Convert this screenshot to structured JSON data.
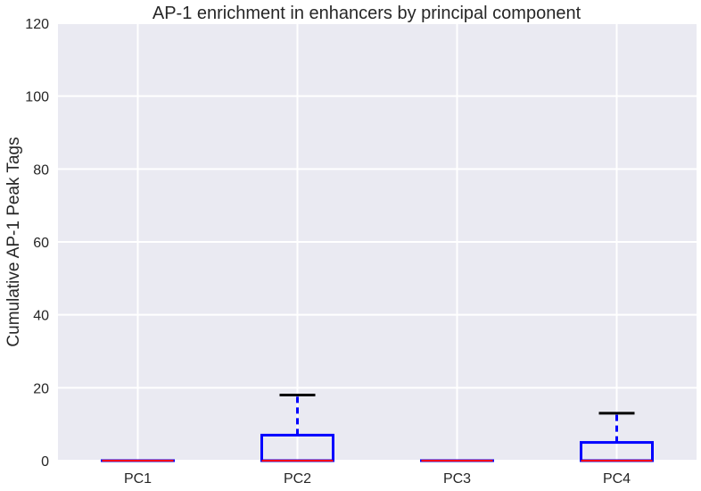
{
  "chart_data": {
    "type": "box",
    "title": "AP-1 enrichment in enhancers by principal component",
    "xlabel": "",
    "ylabel": "Cumulative AP-1 Peak Tags",
    "ylim": [
      0,
      120
    ],
    "yticks": [
      0,
      20,
      40,
      60,
      80,
      100,
      120
    ],
    "categories": [
      "PC1",
      "PC2",
      "PC3",
      "PC4"
    ],
    "boxes": [
      {
        "category": "PC1",
        "whisker_low": 0,
        "q1": 0,
        "median": 0,
        "q3": 0,
        "whisker_high": 0
      },
      {
        "category": "PC2",
        "whisker_low": 0,
        "q1": 0,
        "median": 0,
        "q3": 7,
        "whisker_high": 18
      },
      {
        "category": "PC3",
        "whisker_low": 0,
        "q1": 0,
        "median": 0,
        "q3": 0,
        "whisker_high": 0
      },
      {
        "category": "PC4",
        "whisker_low": 0,
        "q1": 0,
        "median": 0,
        "q3": 5,
        "whisker_high": 13
      }
    ],
    "grid": true,
    "colors": {
      "background": "#EAEAF2",
      "grid": "#FFFFFF",
      "box": "#0000FF",
      "median": "#FF0000",
      "cap": "#000000"
    }
  }
}
